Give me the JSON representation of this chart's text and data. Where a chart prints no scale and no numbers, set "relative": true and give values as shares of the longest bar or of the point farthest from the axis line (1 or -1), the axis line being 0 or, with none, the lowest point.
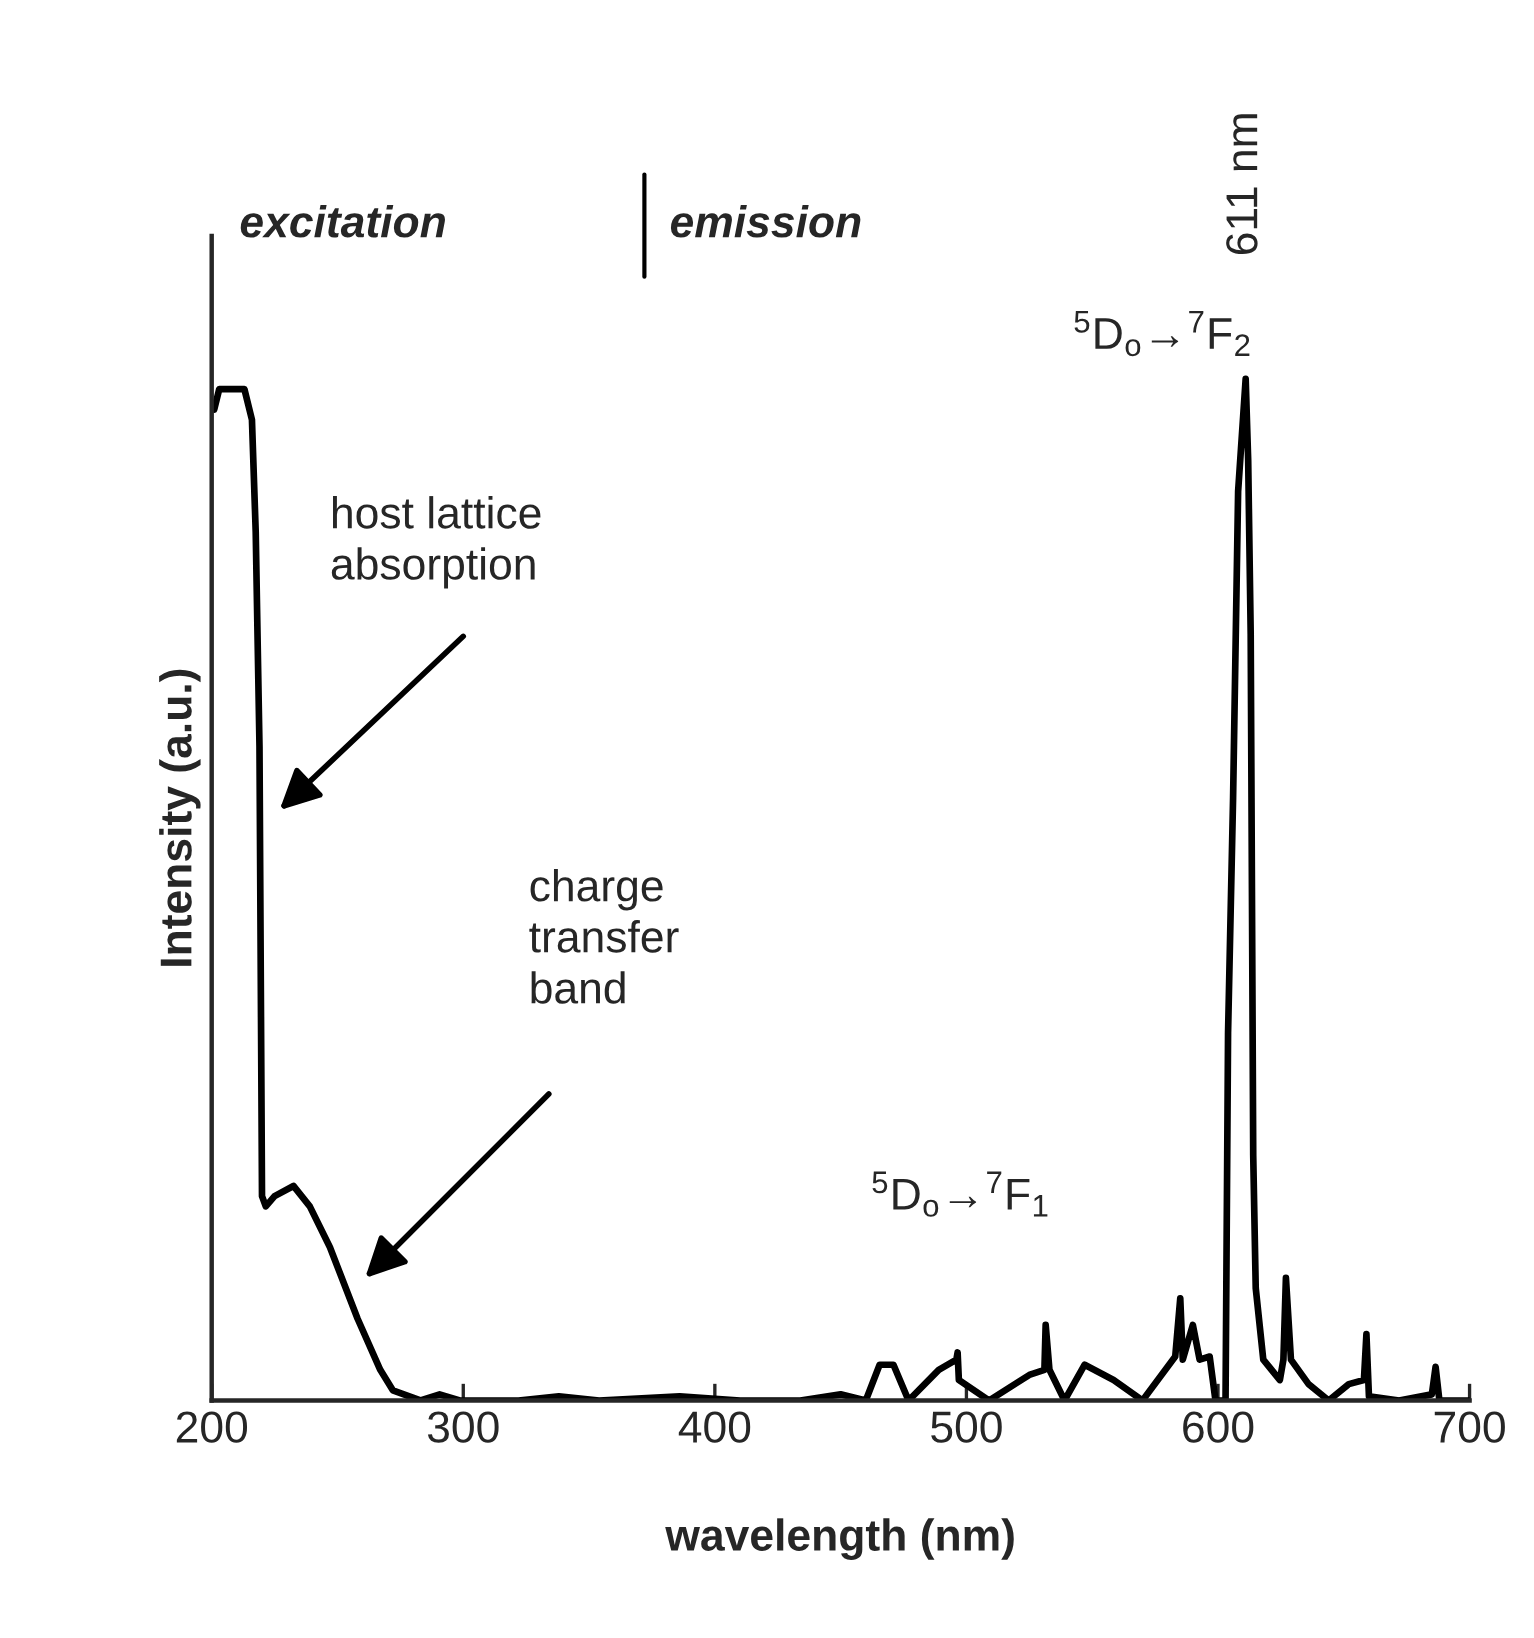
{
  "chart_data": {
    "type": "line",
    "relative": true,
    "xlabel": "wavelength (nm)",
    "ylabel": "Intensity (a.u.)",
    "xlim": [
      200,
      700
    ],
    "xticks": [
      200,
      300,
      400,
      500,
      600,
      700
    ],
    "tick_labels": "x",
    "grid": false,
    "legend": false,
    "marker": "none",
    "line_style": "solid",
    "series": [
      {
        "color": "#000000",
        "x": [
          201,
          203,
          213,
          216,
          217.5,
          219,
          220,
          221.5,
          225,
          232.5,
          239,
          247,
          258,
          267,
          272,
          283,
          290.6,
          298.6,
          322,
          338,
          354,
          386,
          410,
          434,
          450,
          460,
          465.5,
          471,
          477,
          489,
          496,
          496.5,
          497,
          509,
          525,
          531,
          531.5,
          533,
          539,
          547,
          558.5,
          570,
          583,
          585,
          586,
          590,
          592.7,
          596.7,
          599,
          603,
          604,
          606,
          608,
          611,
          612,
          613,
          614,
          615,
          618,
          624.6,
          626,
          627,
          629,
          636,
          644,
          652,
          658,
          659,
          660,
          672,
          685,
          686.5,
          688,
          700
        ],
        "values": [
          0.97,
          0.99,
          0.99,
          0.96,
          0.85,
          0.64,
          0.2,
          0.19,
          0.2,
          0.21,
          0.19,
          0.15,
          0.08,
          0.03,
          0.01,
          0,
          0.006,
          0,
          0,
          0.004,
          0,
          0.004,
          0,
          0,
          0.006,
          0,
          0.035,
          0.035,
          0,
          0.03,
          0.04,
          0.047,
          0.02,
          0,
          0.025,
          0.03,
          0.074,
          0.03,
          0,
          0.035,
          0.02,
          0,
          0.043,
          0.1,
          0.04,
          0.074,
          0.04,
          0.043,
          0,
          0,
          0.36,
          0.59,
          0.89,
          1.0,
          0.92,
          0.75,
          0.24,
          0.11,
          0.04,
          0.02,
          0.04,
          0.12,
          0.04,
          0.016,
          0,
          0.016,
          0.02,
          0.065,
          0.004,
          0,
          0.006,
          0.033,
          0,
          0
        ]
      }
    ],
    "annotations": [
      "excitation",
      "emission",
      "host lattice\nabsorption",
      "charge\ntransfer\nband",
      "$^{5}$D$_{o}$→$^{7}$F$_{1}$",
      "$^{5}$D$_{o}$→$^{7}$F$_{2}$",
      "611 nm"
    ]
  }
}
